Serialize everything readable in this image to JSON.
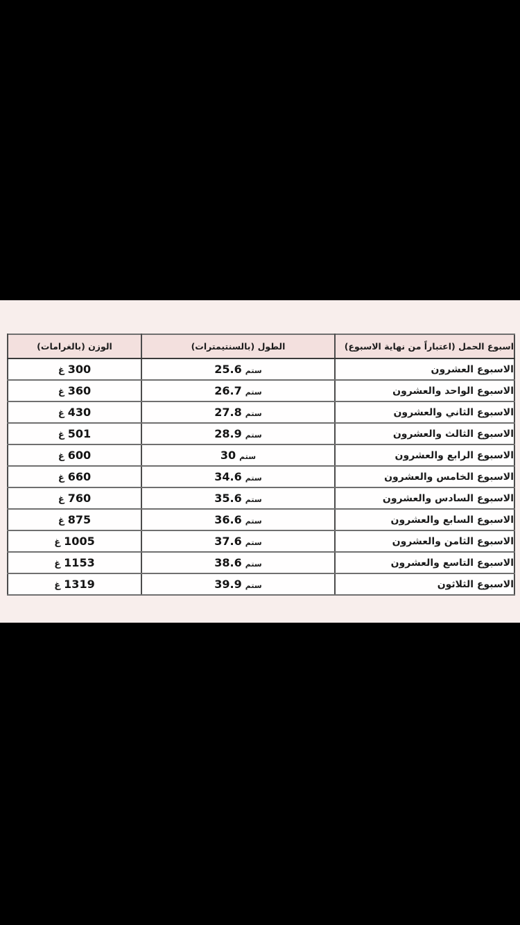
{
  "page": {
    "background_color": "#000000",
    "panel_background_color": "#f8eeec",
    "header_background_color": "#f3e0de",
    "row_background_color": "#fffefe",
    "text_color": "#1c1c1c"
  },
  "table": {
    "headers": {
      "week": "اسبوع الحمل (اعتباراً من نهاية الاسبوع)",
      "length": "الطول (بالسنتيمترات)",
      "weight": "الوزن (بالغرامات)"
    },
    "length_unit": "ستم",
    "weight_unit": "غ",
    "rows": [
      {
        "week": "الاسبوع العشرون",
        "length": "25.6",
        "weight": "300"
      },
      {
        "week": "الاسبوع الواحد والعشرون",
        "length": "26.7",
        "weight": "360"
      },
      {
        "week": "الاسبوع الثاني والعشرون",
        "length": "27.8",
        "weight": "430"
      },
      {
        "week": "الاسبوع الثالث والعشرون",
        "length": "28.9",
        "weight": "501"
      },
      {
        "week": "الاسبوع الرابع والعشرون",
        "length": "30",
        "weight": "600"
      },
      {
        "week": "الاسبوع الخامس والعشرون",
        "length": "34.6",
        "weight": "660"
      },
      {
        "week": "الاسبوع السادس والعشرون",
        "length": "35.6",
        "weight": "760"
      },
      {
        "week": "الاسبوع السابع والعشرون",
        "length": "36.6",
        "weight": "875"
      },
      {
        "week": "الاسبوع الثامن والعشرون",
        "length": "37.6",
        "weight": "1005"
      },
      {
        "week": "الاسبوع التاسع والعشرون",
        "length": "38.6",
        "weight": "1153"
      },
      {
        "week": "الاسبوع الثلاثون",
        "length": "39.9",
        "weight": "1319"
      }
    ]
  }
}
